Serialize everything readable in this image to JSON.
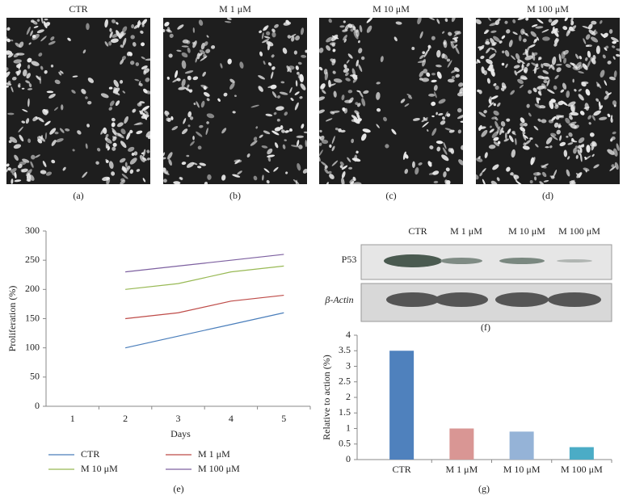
{
  "panels": [
    {
      "title": "CTR",
      "label": "(a)"
    },
    {
      "title": "M 1 μM",
      "label": "(b)"
    },
    {
      "title": "M 10 μM",
      "label": "(c)"
    },
    {
      "title": "M 100 μM",
      "label": "(d)"
    }
  ],
  "blot": {
    "columns": [
      "CTR",
      "M 1 μM",
      "M 10 μM",
      "M 100 μM"
    ],
    "rows": [
      "P53",
      "β-Actin"
    ],
    "label": "(f)"
  },
  "chart_data": [
    {
      "type": "line",
      "label": "(e)",
      "x_label": "Days",
      "y_label": "Proliferation (%)",
      "categories": [
        "1",
        "2",
        "3",
        "4",
        "5"
      ],
      "ylim": [
        0,
        300
      ],
      "yticks": [
        0,
        50,
        100,
        150,
        200,
        250,
        300
      ],
      "grid": false,
      "series": [
        {
          "name": "CTR",
          "color": "#4a7ebb",
          "values": [
            null,
            100,
            120,
            140,
            160
          ]
        },
        {
          "name": "M 1 μM",
          "color": "#be4b48",
          "values": [
            null,
            150,
            160,
            180,
            190
          ]
        },
        {
          "name": "M 10 μM",
          "color": "#98b954",
          "values": [
            null,
            200,
            210,
            230,
            240
          ]
        },
        {
          "name": "M 100 μM",
          "color": "#7d60a0",
          "values": [
            null,
            230,
            240,
            250,
            260
          ]
        }
      ]
    },
    {
      "type": "bar",
      "label": "(g)",
      "y_label": "Relative to action (%)",
      "categories": [
        "CTR",
        "M 1 μM",
        "M 10 μM",
        "M 100 μM"
      ],
      "values": [
        3.5,
        1,
        0.9,
        0.4
      ],
      "colors": [
        "#4f81bd",
        "#d99694",
        "#95b3d7",
        "#4bacc6"
      ],
      "ylim": [
        0,
        4
      ],
      "yticks": [
        0,
        0.5,
        1,
        1.5,
        2,
        2.5,
        3,
        3.5,
        4
      ],
      "grid": false
    }
  ]
}
